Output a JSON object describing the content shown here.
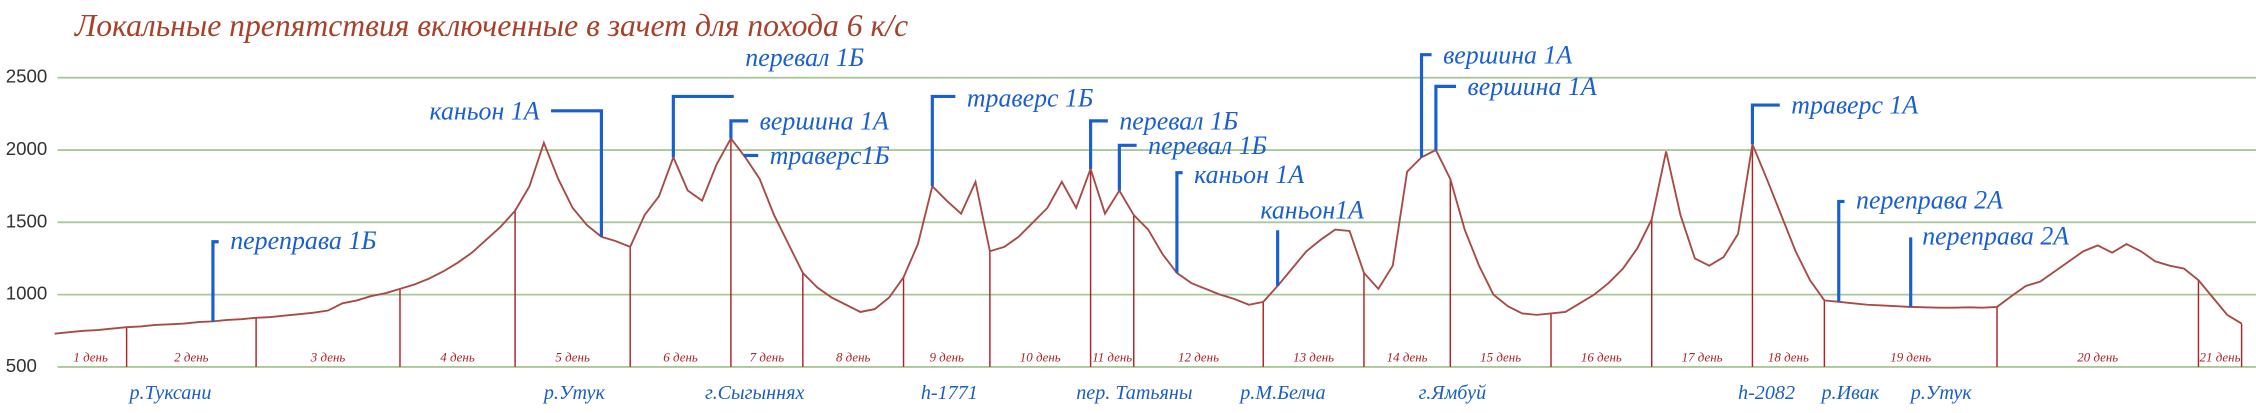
{
  "chart_data": {
    "type": "line",
    "title": "Локальные препятствия включенные в зачет для похода 6 к/с",
    "color": "#a84a46",
    "grid": true,
    "ylim": [
      500,
      2500
    ],
    "yticks": [
      500,
      1000,
      1500,
      2000,
      2500
    ],
    "days": [
      {
        "label": "1 день",
        "values": [
          730,
          740,
          750,
          755,
          765,
          775
        ]
      },
      {
        "label": "2 день",
        "values": [
          780,
          790,
          795,
          800,
          810,
          815,
          825,
          830,
          840
        ]
      },
      {
        "label": "3 день",
        "values": [
          845,
          855,
          865,
          875,
          890,
          940,
          960,
          990,
          1010,
          1040
        ]
      },
      {
        "label": "4 день",
        "values": [
          1070,
          1110,
          1160,
          1220,
          1290,
          1380,
          1470,
          1580
        ]
      },
      {
        "label": "5 день",
        "values": [
          1750,
          2050,
          1800,
          1600,
          1480,
          1400,
          1370,
          1330
        ]
      },
      {
        "label": "6 день",
        "values": [
          1550,
          1680,
          1950,
          1720,
          1650,
          1900,
          2080
        ]
      },
      {
        "label": "7 день",
        "values": [
          1950,
          1800,
          1550,
          1350,
          1150
        ]
      },
      {
        "label": "8 день",
        "values": [
          1050,
          980,
          930,
          880,
          900,
          980,
          1120
        ]
      },
      {
        "label": "9 день",
        "values": [
          1350,
          1750,
          1650,
          1560,
          1780,
          1300
        ]
      },
      {
        "label": "10 день",
        "values": [
          1330,
          1400,
          1500,
          1600,
          1780,
          1600,
          1870
        ]
      },
      {
        "label": "11 день",
        "values": [
          1560,
          1720,
          1550
        ]
      },
      {
        "label": "12 день",
        "values": [
          1450,
          1280,
          1150,
          1080,
          1040,
          1000,
          970,
          930,
          950
        ]
      },
      {
        "label": "13 день",
        "values": [
          1060,
          1180,
          1300,
          1380,
          1450,
          1440,
          1150
        ]
      },
      {
        "label": "14 день",
        "values": [
          1040,
          1200,
          1850,
          1950,
          2000,
          1800
        ]
      },
      {
        "label": "15 день",
        "values": [
          1450,
          1200,
          1000,
          920,
          870,
          860,
          870
        ]
      },
      {
        "label": "16 день",
        "values": [
          880,
          940,
          1000,
          1080,
          1180,
          1320,
          1520
        ]
      },
      {
        "label": "17 день",
        "values": [
          1990,
          1550,
          1250,
          1200,
          1260,
          1420,
          2040
        ]
      },
      {
        "label": "18 день",
        "values": [
          1800,
          1550,
          1300,
          1100,
          960
        ]
      },
      {
        "label": "19 день",
        "values": [
          950,
          940,
          930,
          925,
          920,
          915,
          912,
          910,
          910,
          912,
          910,
          915
        ]
      },
      {
        "label": "20 день",
        "values": [
          990,
          1060,
          1090,
          1160,
          1230,
          1300,
          1340,
          1290,
          1350,
          1300,
          1230,
          1200,
          1180,
          1100
        ]
      },
      {
        "label": "21 день",
        "values": [
          980,
          860,
          800
        ]
      }
    ],
    "annotations": [
      "переправа 1Б",
      "каньон 1А",
      "перевал 1Б",
      "вершина 1А",
      "траверс1Б",
      "траверс 1Б",
      "перевал 1Б",
      "перевал 1Б",
      "каньон 1А",
      "каньон1А",
      "вершина 1А",
      "вершина 1А",
      "траверс 1А",
      "переправа 2А",
      "переправа 2А"
    ],
    "places": [
      "р.Туксани",
      "р.Утук",
      "г.Сыгыннях",
      "h-1771",
      "пер. Татьяны",
      "р.М.Белча",
      "г.Ямбуй",
      "h-2082",
      "р.Ивак",
      "р.Утук"
    ]
  }
}
